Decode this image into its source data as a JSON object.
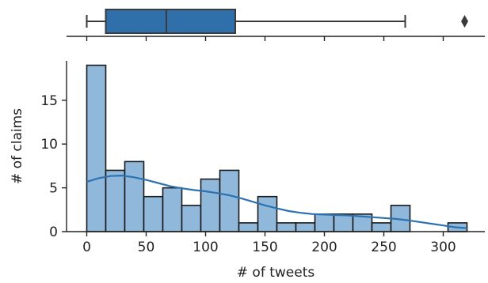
{
  "colors": {
    "box_fill": "#2f6faa",
    "box_edge": "#3a3a3a",
    "bar_fill": "#8fb8db",
    "bar_edge": "#1a1a1a",
    "kde_line": "#2c72b0",
    "axis": "#222222"
  },
  "chart_data": [
    {
      "type": "box",
      "orientation": "horizontal",
      "whisker_low": 0,
      "q1": 16,
      "median": 67,
      "q3": 125,
      "whisker_high": 268,
      "outliers": [
        318
      ],
      "xlim": [
        -17,
        335
      ]
    },
    {
      "type": "bar",
      "subtype": "histogram",
      "bin_edges": [
        0,
        16,
        32,
        48,
        64,
        80,
        96,
        112,
        128,
        144,
        160,
        176,
        192,
        208,
        224,
        240,
        256,
        272,
        288,
        304,
        320
      ],
      "counts": [
        19,
        7,
        8,
        4,
        5,
        3,
        6,
        7,
        1,
        4,
        1,
        1,
        2,
        2,
        2,
        1,
        3,
        0,
        0,
        1
      ],
      "kde": {
        "x": [
          0,
          10,
          20,
          30,
          40,
          50,
          60,
          70,
          80,
          90,
          100,
          110,
          120,
          130,
          140,
          150,
          160,
          170,
          180,
          190,
          200,
          210,
          220,
          230,
          240,
          250,
          260,
          270,
          280,
          290,
          300,
          310,
          320
        ],
        "y": [
          5.7,
          6.1,
          6.35,
          6.4,
          6.2,
          5.9,
          5.55,
          5.2,
          4.95,
          4.75,
          4.6,
          4.4,
          4.15,
          3.8,
          3.4,
          3.0,
          2.65,
          2.35,
          2.15,
          2.0,
          1.95,
          1.9,
          1.85,
          1.75,
          1.65,
          1.55,
          1.45,
          1.3,
          1.1,
          0.9,
          0.7,
          0.5,
          0.4
        ]
      },
      "xlabel": "# of tweets",
      "ylabel": "# of claims",
      "xticks": [
        "0",
        "50",
        "100",
        "150",
        "200",
        "250",
        "300"
      ],
      "yticks": [
        "0",
        "5",
        "10",
        "15"
      ],
      "xlim": [
        -17,
        335
      ],
      "ylim": [
        0,
        19.5
      ]
    }
  ]
}
